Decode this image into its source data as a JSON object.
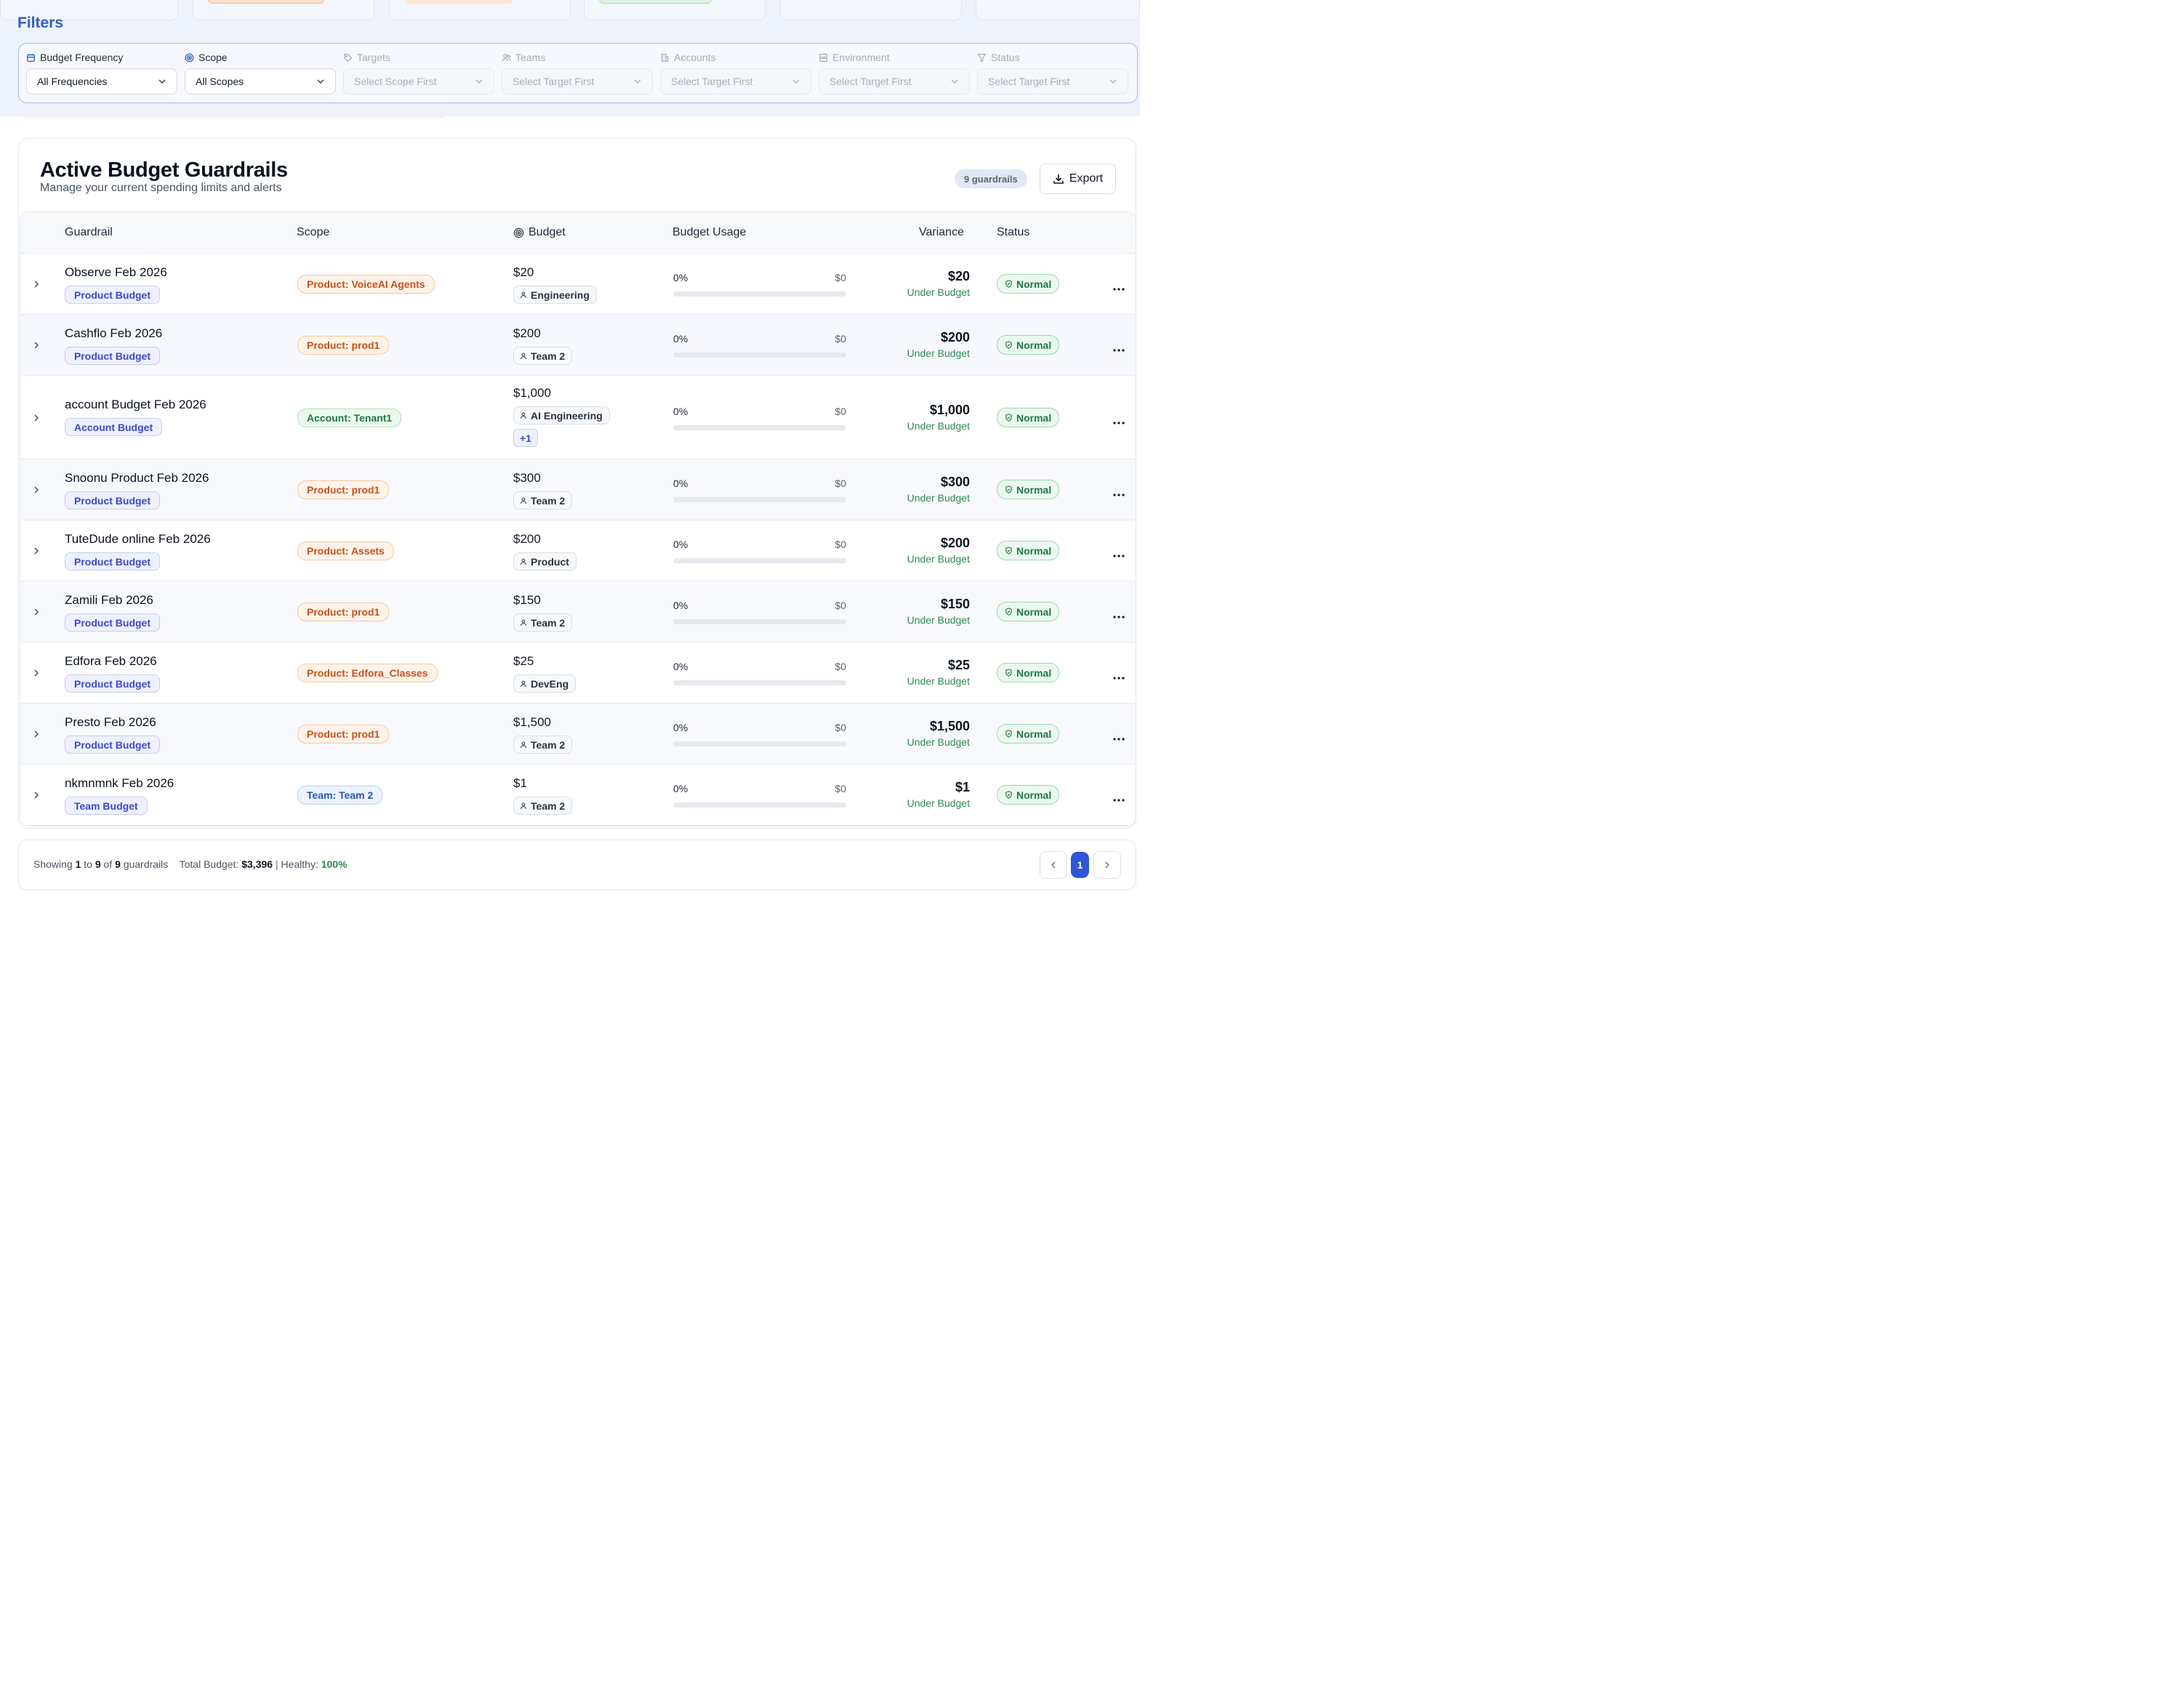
{
  "filters": {
    "title": "Filters",
    "fields": [
      {
        "label": "Budget Frequency",
        "value": "All Frequencies",
        "icon": "calendar-icon",
        "enabled": true
      },
      {
        "label": "Scope",
        "value": "All Scopes",
        "icon": "target-icon",
        "enabled": true
      },
      {
        "label": "Targets",
        "value": "Select Scope First",
        "icon": "tag-icon",
        "enabled": false
      },
      {
        "label": "Teams",
        "value": "Select Target First",
        "icon": "users-icon",
        "enabled": false
      },
      {
        "label": "Accounts",
        "value": "Select Target First",
        "icon": "building-icon",
        "enabled": false
      },
      {
        "label": "Environment",
        "value": "Select Target First",
        "icon": "server-icon",
        "enabled": false
      },
      {
        "label": "Status",
        "value": "Select Target First",
        "icon": "funnel-icon",
        "enabled": false
      }
    ]
  },
  "card": {
    "title": "Active Budget Guardrails",
    "subtitle": "Manage your current spending limits and alerts",
    "count_label": "9 guardrails",
    "export_label": "Export"
  },
  "table": {
    "headers": {
      "guardrail": "Guardrail",
      "scope": "Scope",
      "budget": "Budget",
      "usage": "Budget Usage",
      "variance": "Variance",
      "status": "Status"
    },
    "rows": [
      {
        "name": "Observe Feb 2026",
        "type": "Product Budget",
        "scope": "Product: VoiceAI Agents",
        "scope_kind": "product",
        "budget": "$20",
        "team": "Engineering",
        "extra": "",
        "usage_pct": "0%",
        "spent": "$0",
        "usage_fraction": 0,
        "variance": "$20",
        "variance_label": "Under Budget",
        "status": "Normal"
      },
      {
        "name": "Cashflo Feb 2026",
        "type": "Product Budget",
        "scope": "Product: prod1",
        "scope_kind": "product",
        "budget": "$200",
        "team": "Team 2",
        "extra": "",
        "usage_pct": "0%",
        "spent": "$0",
        "usage_fraction": 0,
        "variance": "$200",
        "variance_label": "Under Budget",
        "status": "Normal"
      },
      {
        "name": "account Budget Feb 2026",
        "type": "Account Budget",
        "scope": "Account: Tenant1",
        "scope_kind": "account",
        "budget": "$1,000",
        "team": "AI Engineering",
        "extra": "+1",
        "usage_pct": "0%",
        "spent": "$0",
        "usage_fraction": 0,
        "variance": "$1,000",
        "variance_label": "Under Budget",
        "status": "Normal"
      },
      {
        "name": "Snoonu Product Feb 2026",
        "type": "Product Budget",
        "scope": "Product: prod1",
        "scope_kind": "product",
        "budget": "$300",
        "team": "Team 2",
        "extra": "",
        "usage_pct": "0%",
        "spent": "$0",
        "usage_fraction": 0,
        "variance": "$300",
        "variance_label": "Under Budget",
        "status": "Normal"
      },
      {
        "name": "TuteDude online Feb 2026",
        "type": "Product Budget",
        "scope": "Product: Assets",
        "scope_kind": "product",
        "budget": "$200",
        "team": "Product",
        "extra": "",
        "usage_pct": "0%",
        "spent": "$0",
        "usage_fraction": 0,
        "variance": "$200",
        "variance_label": "Under Budget",
        "status": "Normal"
      },
      {
        "name": "Zamili Feb 2026",
        "type": "Product Budget",
        "scope": "Product: prod1",
        "scope_kind": "product",
        "budget": "$150",
        "team": "Team 2",
        "extra": "",
        "usage_pct": "0%",
        "spent": "$0",
        "usage_fraction": 0,
        "variance": "$150",
        "variance_label": "Under Budget",
        "status": "Normal"
      },
      {
        "name": "Edfora Feb 2026",
        "type": "Product Budget",
        "scope": "Product: Edfora_Classes",
        "scope_kind": "product",
        "budget": "$25",
        "team": "DevEng",
        "extra": "",
        "usage_pct": "0%",
        "spent": "$0",
        "usage_fraction": 0,
        "variance": "$25",
        "variance_label": "Under Budget",
        "status": "Normal"
      },
      {
        "name": "Presto Feb 2026",
        "type": "Product Budget",
        "scope": "Product: prod1",
        "scope_kind": "product",
        "budget": "$1,500",
        "team": "Team 2",
        "extra": "",
        "usage_pct": "0%",
        "spent": "$0",
        "usage_fraction": 0,
        "variance": "$1,500",
        "variance_label": "Under Budget",
        "status": "Normal"
      },
      {
        "name": "nkmnmnk Feb 2026",
        "type": "Team Budget",
        "scope": "Team: Team 2",
        "scope_kind": "team",
        "budget": "$1",
        "team": "Team 2",
        "extra": "",
        "usage_pct": "0%",
        "spent": "$0",
        "usage_fraction": 0,
        "variance": "$1",
        "variance_label": "Under Budget",
        "status": "Normal"
      }
    ]
  },
  "footer": {
    "showing": "Showing",
    "from": "1",
    "to_word": "to",
    "to": "9",
    "of_word": "of",
    "total": "9",
    "unit": "guardrails",
    "total_budget_label": "Total Budget:",
    "total_budget": "$3,396",
    "separator": "|",
    "healthy_label": "Healthy:",
    "healthy_value": "100%",
    "current_page": "1"
  },
  "colors": {
    "accent": "#2d55d6",
    "status_green": "#1d7a3d",
    "product_orange": "#c5511c"
  }
}
